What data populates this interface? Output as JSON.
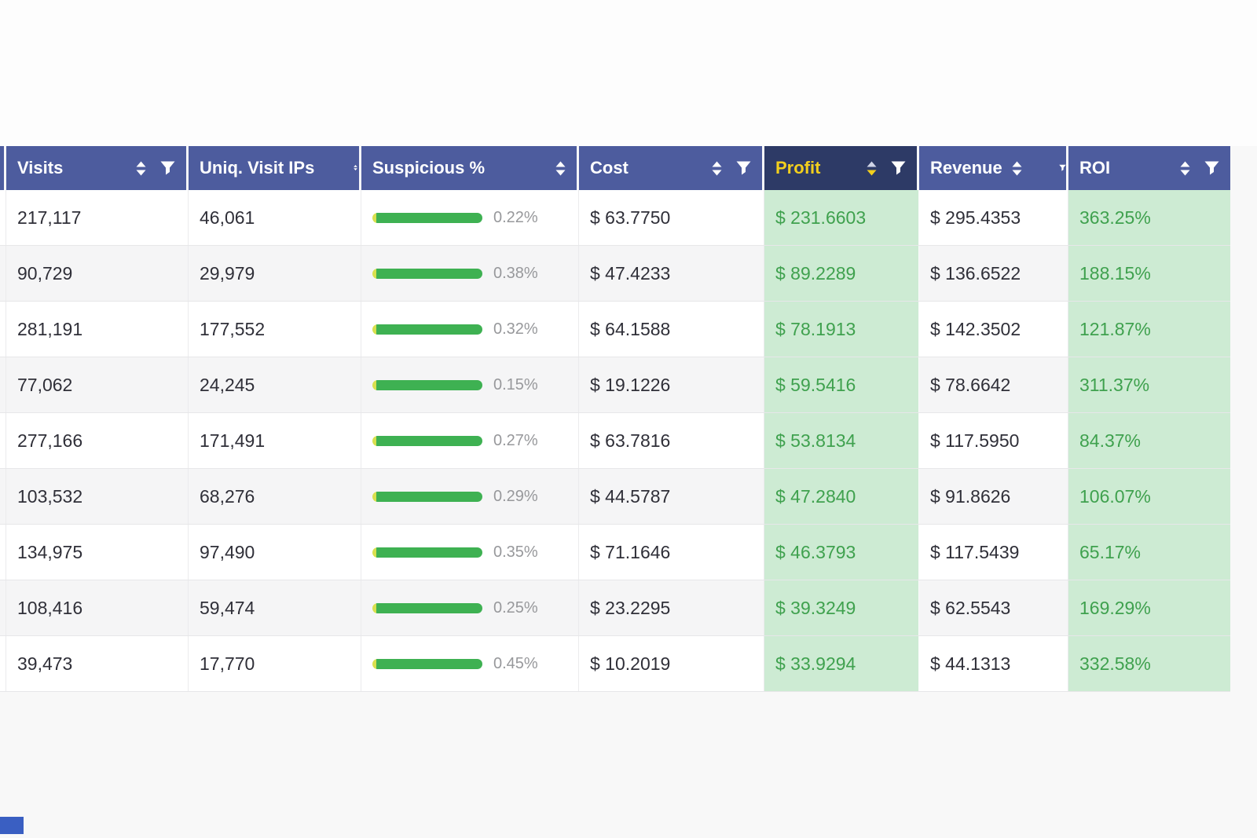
{
  "colors": {
    "header_bg": "#4d5c9e",
    "header_active_bg": "#2d3a66",
    "header_text": "#ffffff",
    "header_active_text": "#f2cf1d",
    "sort_icon_inactive": "#ffffff",
    "sort_icon_active_up": "#cfd4e6",
    "sort_icon_active_down": "#f2cf1d",
    "filter_icon": "#ffffff",
    "row_bg": "#ffffff",
    "row_alt_bg": "#f5f5f6",
    "green_cell_bg": "#cdebd3",
    "green_text": "#3fa14e",
    "dark_text": "#2f2f38",
    "bar_green": "#3eb152",
    "bar_yellow": "#d8e04e",
    "pct_text": "#97989b"
  },
  "table": {
    "columns": [
      {
        "key": "clip",
        "label": "",
        "sort": false,
        "filter": false
      },
      {
        "key": "visits",
        "label": "Visits",
        "sort": true,
        "filter": true
      },
      {
        "key": "uniq_ips",
        "label": "Uniq. Visit IPs",
        "sort": true,
        "sort_clipped": true,
        "filter": false
      },
      {
        "key": "suspicious",
        "label": "Suspicious %",
        "sort": true,
        "filter": false
      },
      {
        "key": "cost",
        "label": "Cost",
        "sort": true,
        "filter": true
      },
      {
        "key": "profit",
        "label": "Profit",
        "sort": true,
        "filter": true,
        "active": true,
        "sort_direction": "desc"
      },
      {
        "key": "revenue",
        "label": "Revenue",
        "sort": true,
        "filter": true,
        "filter_clipped": true
      },
      {
        "key": "roi",
        "label": "ROI",
        "sort": true,
        "filter": true
      }
    ],
    "rows": [
      {
        "visits": "217,117",
        "uniq_ips": "46,061",
        "suspicious": "0.22%",
        "cost": "$ 63.7750",
        "profit": "$ 231.6603",
        "revenue": "$ 295.4353",
        "roi": "363.25%"
      },
      {
        "visits": "90,729",
        "uniq_ips": "29,979",
        "suspicious": "0.38%",
        "cost": "$ 47.4233",
        "profit": "$ 89.2289",
        "revenue": "$ 136.6522",
        "roi": "188.15%"
      },
      {
        "visits": "281,191",
        "uniq_ips": "177,552",
        "suspicious": "0.32%",
        "cost": "$ 64.1588",
        "profit": "$ 78.1913",
        "revenue": "$ 142.3502",
        "roi": "121.87%"
      },
      {
        "visits": "77,062",
        "uniq_ips": "24,245",
        "suspicious": "0.15%",
        "cost": "$ 19.1226",
        "profit": "$ 59.5416",
        "revenue": "$ 78.6642",
        "roi": "311.37%"
      },
      {
        "visits": "277,166",
        "uniq_ips": "171,491",
        "suspicious": "0.27%",
        "cost": "$ 63.7816",
        "profit": "$ 53.8134",
        "revenue": "$ 117.5950",
        "roi": "84.37%"
      },
      {
        "visits": "103,532",
        "uniq_ips": "68,276",
        "suspicious": "0.29%",
        "cost": "$ 44.5787",
        "profit": "$ 47.2840",
        "revenue": "$ 91.8626",
        "roi": "106.07%"
      },
      {
        "visits": "134,975",
        "uniq_ips": "97,490",
        "suspicious": "0.35%",
        "cost": "$ 71.1646",
        "profit": "$ 46.3793",
        "revenue": "$ 117.5439",
        "roi": "65.17%"
      },
      {
        "visits": "108,416",
        "uniq_ips": "59,474",
        "suspicious": "0.25%",
        "cost": "$ 23.2295",
        "profit": "$ 39.3249",
        "revenue": "$ 62.5543",
        "roi": "169.29%"
      },
      {
        "visits": "39,473",
        "uniq_ips": "17,770",
        "suspicious": "0.45%",
        "cost": "$ 10.2019",
        "profit": "$ 33.9294",
        "revenue": "$ 44.1313",
        "roi": "332.58%"
      }
    ]
  }
}
